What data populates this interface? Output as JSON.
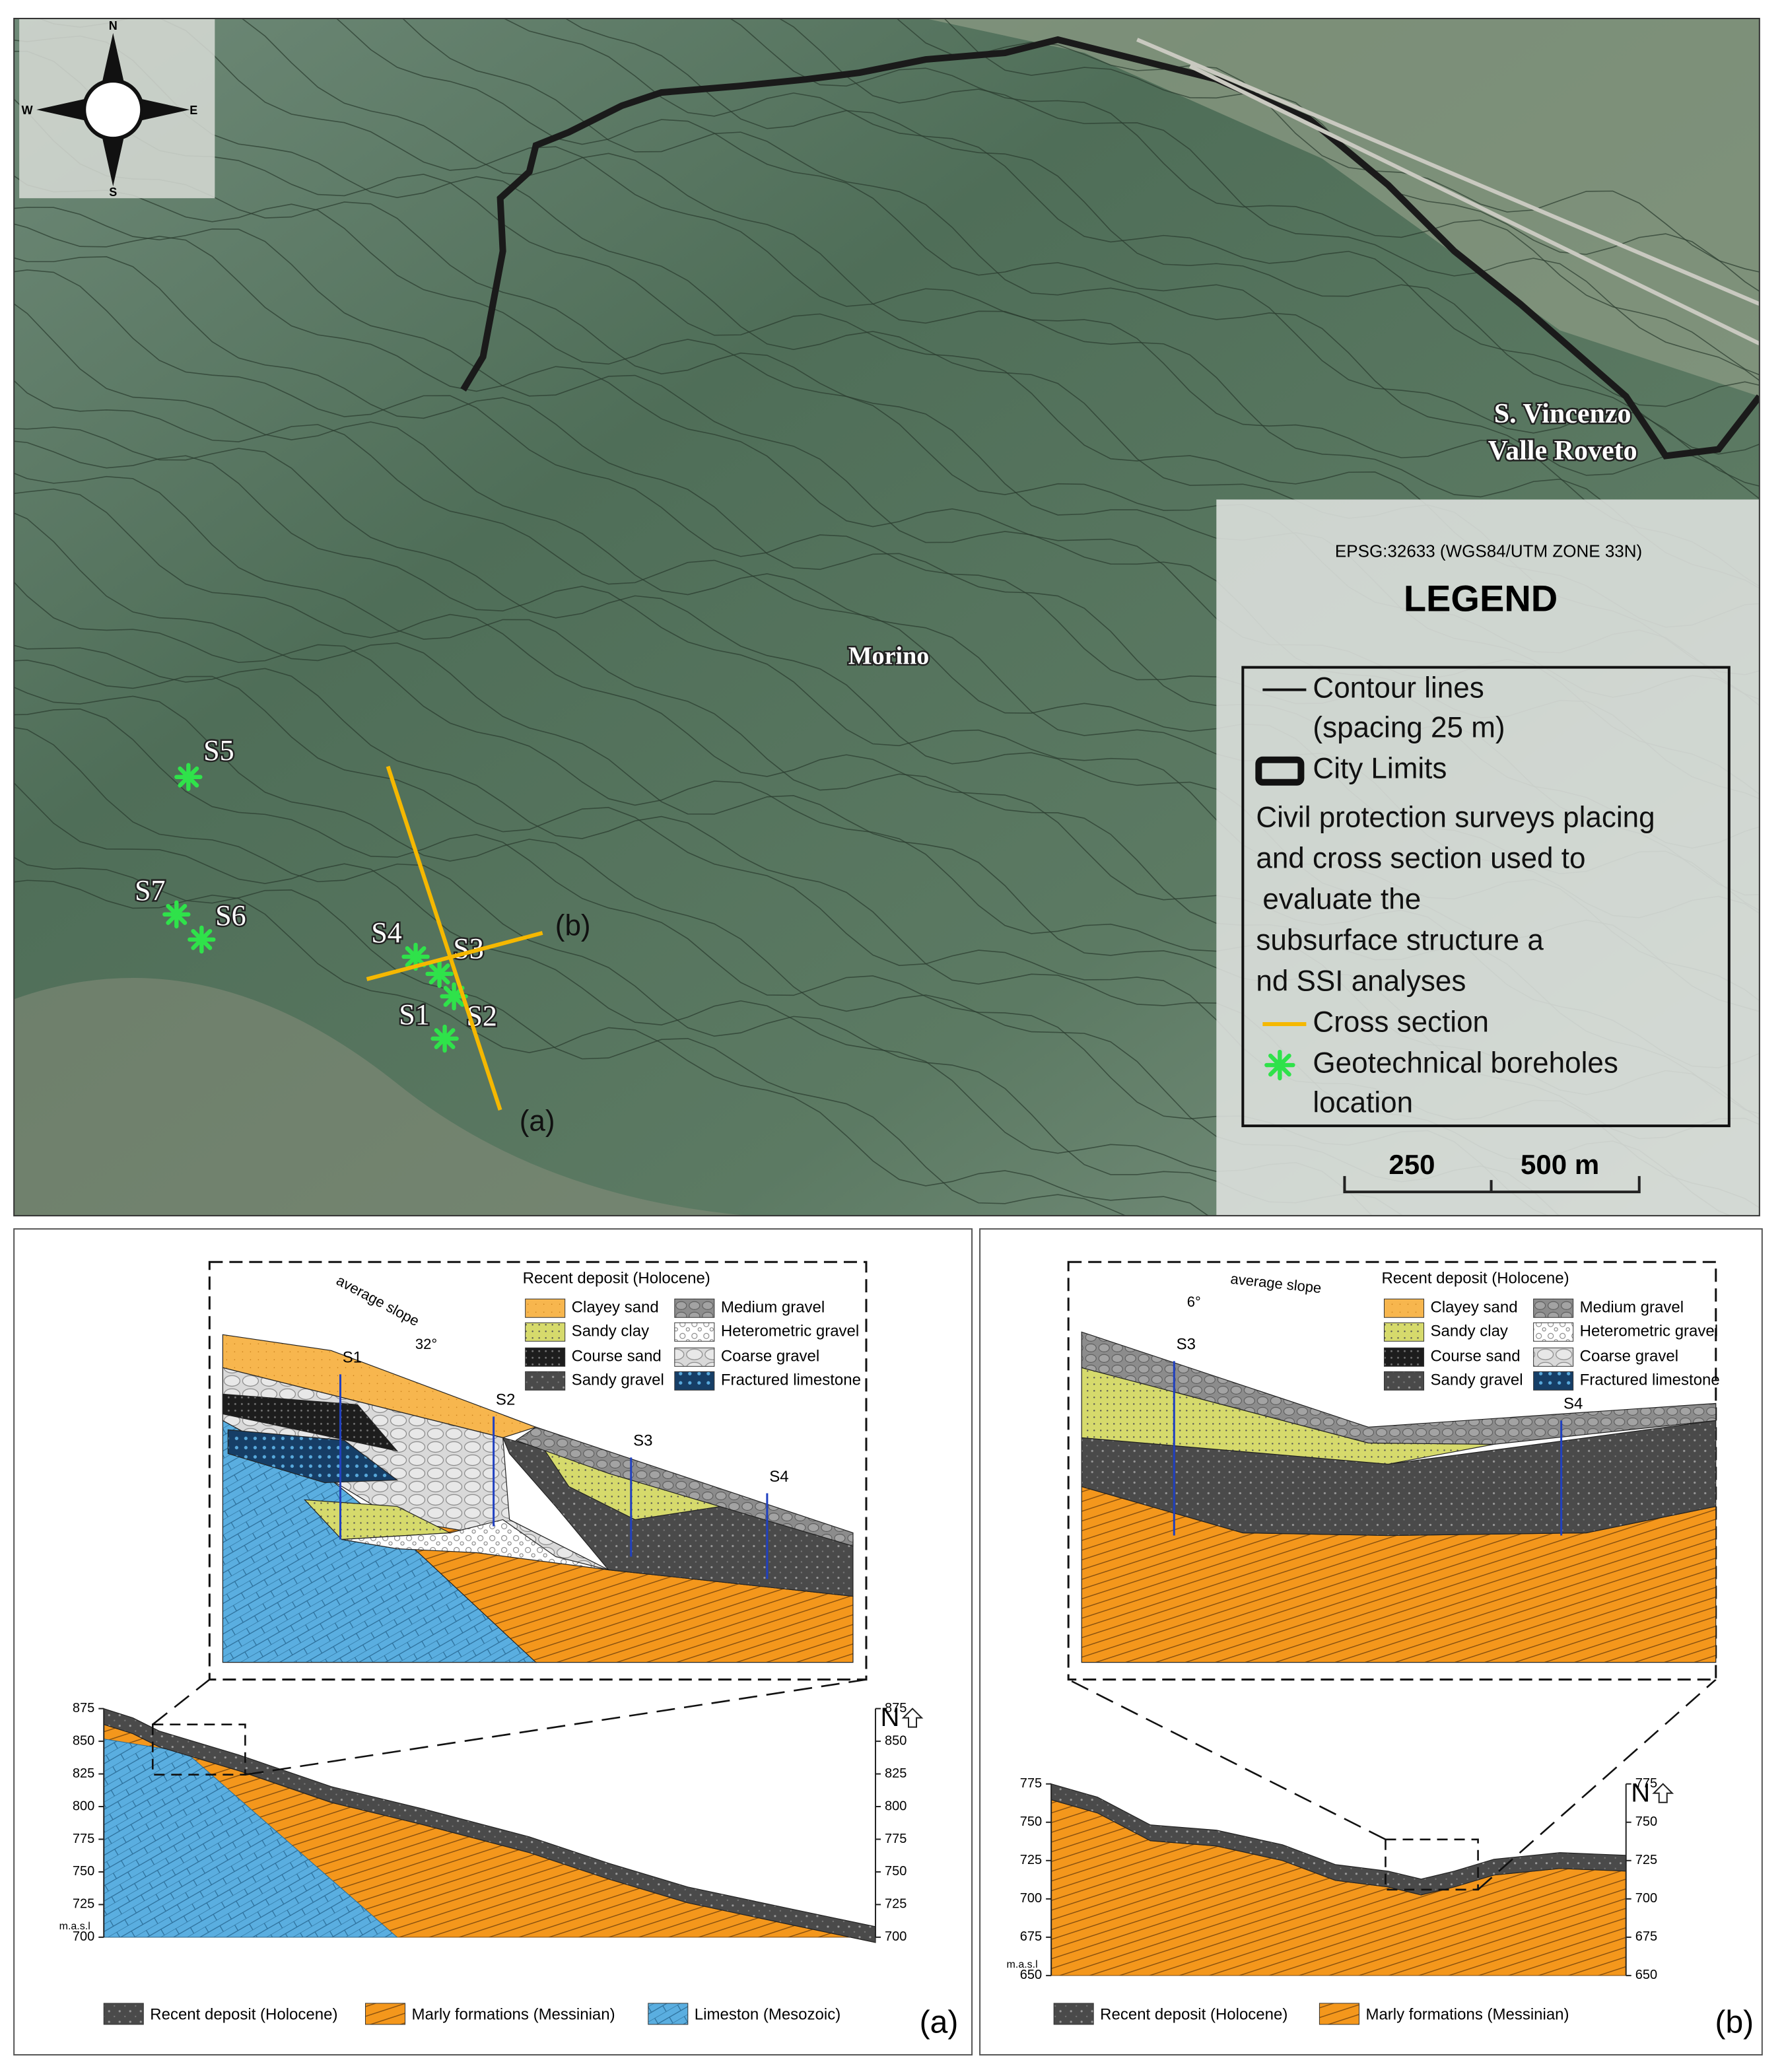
{
  "map": {
    "compass": {
      "n": "N",
      "e": "E",
      "s": "S",
      "w": "W"
    },
    "town": [
      "S. Vincenzo",
      "Valle Roveto"
    ],
    "village": "Morino",
    "boreholes": [
      "S1",
      "S2",
      "S3",
      "S4",
      "S5",
      "S6",
      "S7"
    ],
    "section_ends": [
      "(a)",
      "(b)"
    ],
    "legend": {
      "crs": "EPSG:32633 (WGS84/UTM ZONE 33N)",
      "title": "LEGEND",
      "lines": [
        "Contour lines",
        "(spacing 25 m)",
        "City Limits",
        "Civil protection surveys placing",
        "and cross section used to",
        "evaluate the",
        "subsurface structure a",
        "nd SSI analyses",
        "Cross section",
        "Geotechnical boreholes",
        "location"
      ]
    },
    "scale": [
      "250",
      "500 m"
    ]
  },
  "sections": [
    {
      "label": "(a)",
      "ylim": [
        700,
        875
      ],
      "yticks": [
        700,
        725,
        750,
        775,
        800,
        825,
        850,
        875
      ],
      "unit": "m.a.s.l",
      "north": "N",
      "legend": [
        "Recent deposit (Holocene)",
        "Marly formations (Messinian)",
        "Limeston (Mesozoic)"
      ],
      "inset": {
        "title": "Recent deposit (Holocene)",
        "items": [
          "Clayey sand",
          "Medium gravel",
          "Sandy clay",
          "Heterometric gravel",
          "Course sand",
          "Coarse gravel",
          "Sandy gravel",
          "Fractured limestone"
        ],
        "slope_label": "average slope",
        "slope_angle": "32°",
        "boreholes": [
          "S1",
          "S2",
          "S3",
          "S4"
        ]
      }
    },
    {
      "label": "(b)",
      "ylim": [
        650,
        775
      ],
      "yticks": [
        650,
        675,
        700,
        725,
        750,
        775
      ],
      "unit": "m.a.s.l",
      "north": "N",
      "legend": [
        "Recent deposit (Holocene)",
        "Marly formations (Messinian)"
      ],
      "inset": {
        "title": "Recent deposit (Holocene)",
        "items": [
          "Clayey sand",
          "Medium gravel",
          "Sandy clay",
          "Heterometric gravel",
          "Course sand",
          "Coarse gravel",
          "Sandy gravel",
          "Fractured limestone"
        ],
        "slope_label": "average slope",
        "slope_angle": "6°",
        "boreholes": [
          "S3",
          "S4"
        ]
      }
    }
  ]
}
